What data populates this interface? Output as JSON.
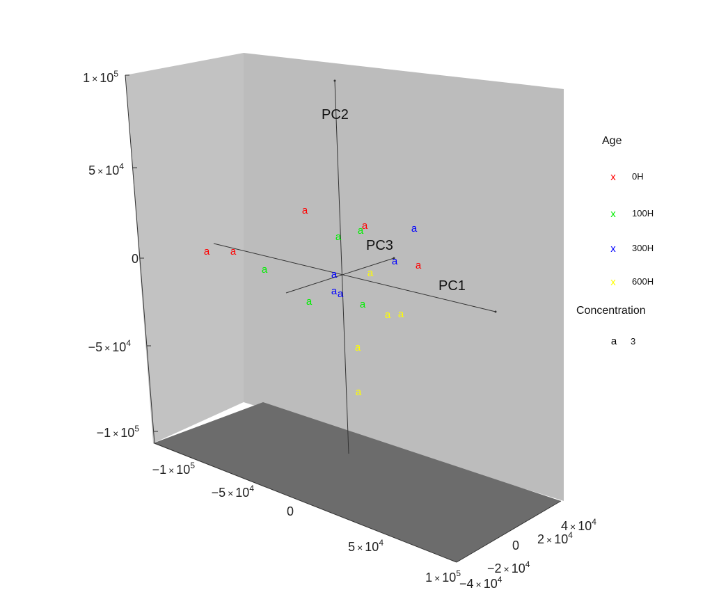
{
  "chart_data": {
    "type": "scatter",
    "projection": "3d",
    "axes_labels": {
      "pc1": "PC1",
      "pc2": "PC2",
      "pc3": "PC3"
    },
    "ticks": {
      "vertical": [
        {
          "value": 100000,
          "label": "1×10^5"
        },
        {
          "value": 50000,
          "label": "5×10^4"
        },
        {
          "value": 0,
          "label": "0"
        },
        {
          "value": -50000,
          "label": "−5×10^4"
        },
        {
          "value": -100000,
          "label": "−1×10^5"
        }
      ],
      "front": [
        {
          "value": -100000,
          "label": "−1×10^5"
        },
        {
          "value": -50000,
          "label": "−5×10^4"
        },
        {
          "value": 0,
          "label": "0"
        },
        {
          "value": 50000,
          "label": "5×10^4"
        },
        {
          "value": 100000,
          "label": "1×10^5"
        }
      ],
      "depth": [
        {
          "value": -40000,
          "label": "−4×10^4"
        },
        {
          "value": -20000,
          "label": "−2×10^4"
        },
        {
          "value": 0,
          "label": "0"
        },
        {
          "value": 20000,
          "label": "2×10^4"
        },
        {
          "value": 40000,
          "label": "4×10^4"
        }
      ]
    },
    "legend": {
      "age_title": "Age",
      "age_entries": [
        {
          "symbol": "x",
          "label": "0H",
          "color": "#ff0000"
        },
        {
          "symbol": "x",
          "label": "100H",
          "color": "#00ee00"
        },
        {
          "symbol": "x",
          "label": "300H",
          "color": "#0000ff"
        },
        {
          "symbol": "x",
          "label": "600H",
          "color": "#ffff00"
        }
      ],
      "concentration_title": "Concentration",
      "concentration_entries": [
        {
          "symbol": "a",
          "label": "3",
          "color": "#000000"
        }
      ]
    },
    "points": [
      {
        "group": "0H",
        "marker": "a",
        "color": "#ff0000",
        "sx": 438,
        "sy": 303
      },
      {
        "group": "0H",
        "marker": "a",
        "color": "#ff0000",
        "sx": 297,
        "sy": 362
      },
      {
        "group": "0H",
        "marker": "a",
        "color": "#ff0000",
        "sx": 335,
        "sy": 362
      },
      {
        "group": "0H",
        "marker": "a",
        "color": "#ff0000",
        "sx": 524,
        "sy": 325
      },
      {
        "group": "0H",
        "marker": "a",
        "color": "#ff0000",
        "sx": 601,
        "sy": 382
      },
      {
        "group": "100H",
        "marker": "a",
        "color": "#00ee00",
        "sx": 486,
        "sy": 341
      },
      {
        "group": "100H",
        "marker": "a",
        "color": "#00ee00",
        "sx": 518,
        "sy": 332
      },
      {
        "group": "100H",
        "marker": "a",
        "color": "#00ee00",
        "sx": 380,
        "sy": 388
      },
      {
        "group": "100H",
        "marker": "a",
        "color": "#00ee00",
        "sx": 444,
        "sy": 434
      },
      {
        "group": "100H",
        "marker": "a",
        "color": "#00ee00",
        "sx": 521,
        "sy": 438
      },
      {
        "group": "300H",
        "marker": "a",
        "color": "#0000ff",
        "sx": 595,
        "sy": 329
      },
      {
        "group": "300H",
        "marker": "a",
        "color": "#0000ff",
        "sx": 567,
        "sy": 376
      },
      {
        "group": "300H",
        "marker": "a",
        "color": "#0000ff",
        "sx": 480,
        "sy": 395
      },
      {
        "group": "300H",
        "marker": "a",
        "color": "#0000ff",
        "sx": 480,
        "sy": 419
      },
      {
        "group": "300H",
        "marker": "a",
        "color": "#0000ff",
        "sx": 489,
        "sy": 423
      },
      {
        "group": "600H",
        "marker": "a",
        "color": "#ffff00",
        "sx": 532,
        "sy": 393
      },
      {
        "group": "600H",
        "marker": "a",
        "color": "#ffff00",
        "sx": 557,
        "sy": 453
      },
      {
        "group": "600H",
        "marker": "a",
        "color": "#ffff00",
        "sx": 576,
        "sy": 452
      },
      {
        "group": "600H",
        "marker": "a",
        "color": "#ffff00",
        "sx": 514,
        "sy": 500
      },
      {
        "group": "600H",
        "marker": "a",
        "color": "#ffff00",
        "sx": 515,
        "sy": 564
      }
    ]
  }
}
